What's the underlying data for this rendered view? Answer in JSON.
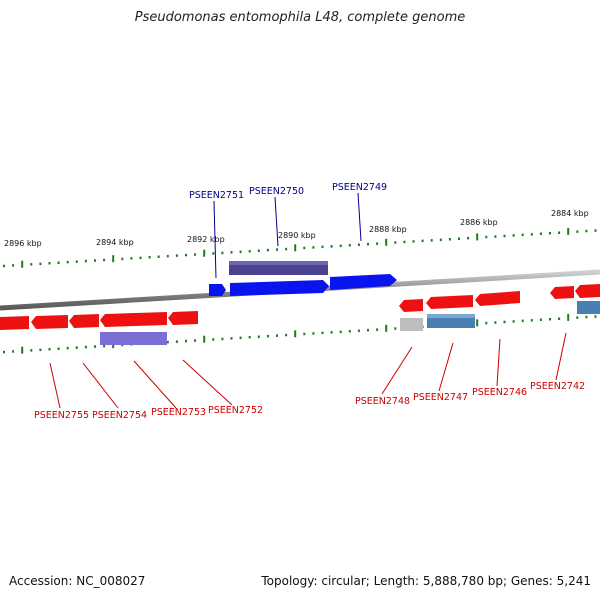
{
  "title": "Pseudomonas entomophila L48, complete genome",
  "footer": {
    "accession": "Accession: NC_008027",
    "summary": "Topology: circular; Length: 5,888,780 bp; Genes: 5,241"
  },
  "scale_labels": [
    "2896 kbp",
    "2894 kbp",
    "2892 kbp",
    "2890 kbp",
    "2888 kbp",
    "2886 kbp",
    "2884 kbp"
  ],
  "gene_labels": {
    "forward": [
      "PSEEN2751",
      "PSEEN2750",
      "PSEEN2749"
    ],
    "reverse": [
      "PSEEN2755",
      "PSEEN2754",
      "PSEEN2753",
      "PSEEN2752",
      "PSEEN2748",
      "PSEEN2747",
      "PSEEN2746",
      "PSEEN2742"
    ]
  },
  "colors": {
    "forward_cds": "#0a14ee",
    "forward_dark": "#4b4390",
    "reverse_cds": "#ee1111",
    "reverse_lavender": "#7b6fd6",
    "reverse_steel": "#4a7fb4",
    "reverse_grey": "#bdbdbd",
    "forward_label": "#00008b",
    "reverse_label": "#cc0000",
    "tick": "#1f7a1f",
    "backbone": "#8a8a8a"
  }
}
